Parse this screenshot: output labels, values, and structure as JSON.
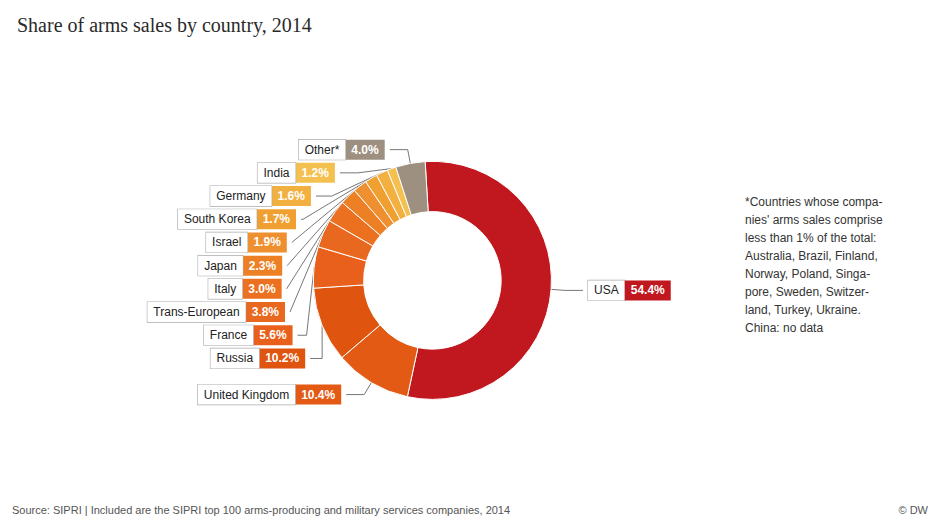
{
  "chart_data": {
    "type": "pie",
    "title": "Share of arms sales by country, 2014",
    "categories": [
      "USA",
      "United Kingdom",
      "Russia",
      "France",
      "Trans-European",
      "Italy",
      "Japan",
      "Israel",
      "South Korea",
      "Germany",
      "India",
      "Other*"
    ],
    "values": [
      54.4,
      10.4,
      10.2,
      5.6,
      3.8,
      3.0,
      2.3,
      1.9,
      1.7,
      1.6,
      1.2,
      4.0
    ],
    "value_labels": [
      "54.4%",
      "10.4%",
      "10.2%",
      "5.6%",
      "3.8%",
      "3.0%",
      "2.3%",
      "1.9%",
      "1.7%",
      "1.6%",
      "1.2%",
      "4.0%"
    ],
    "colors": [
      "#c0181e",
      "#e25a14",
      "#df5510",
      "#e8601c",
      "#e96820",
      "#eb7020",
      "#ed8025",
      "#ef9030",
      "#f0a030",
      "#f2b040",
      "#f4c050",
      "#9e9080"
    ],
    "data_labels": true,
    "annotations": [
      "*Countries whose compa-\nnies' arms sales comprise\nless than 1% of the total:\nAustralia, Brazil, Finland,\nNorway, Poland, Singa-\npore, Sweden, Switzer-\nland, Turkey, Ukraine.\nChina: no data",
      "Source: SIPRI | Included are the SIPRI top 100 arms-producing and military services companies, 2014",
      "© DW"
    ]
  }
}
